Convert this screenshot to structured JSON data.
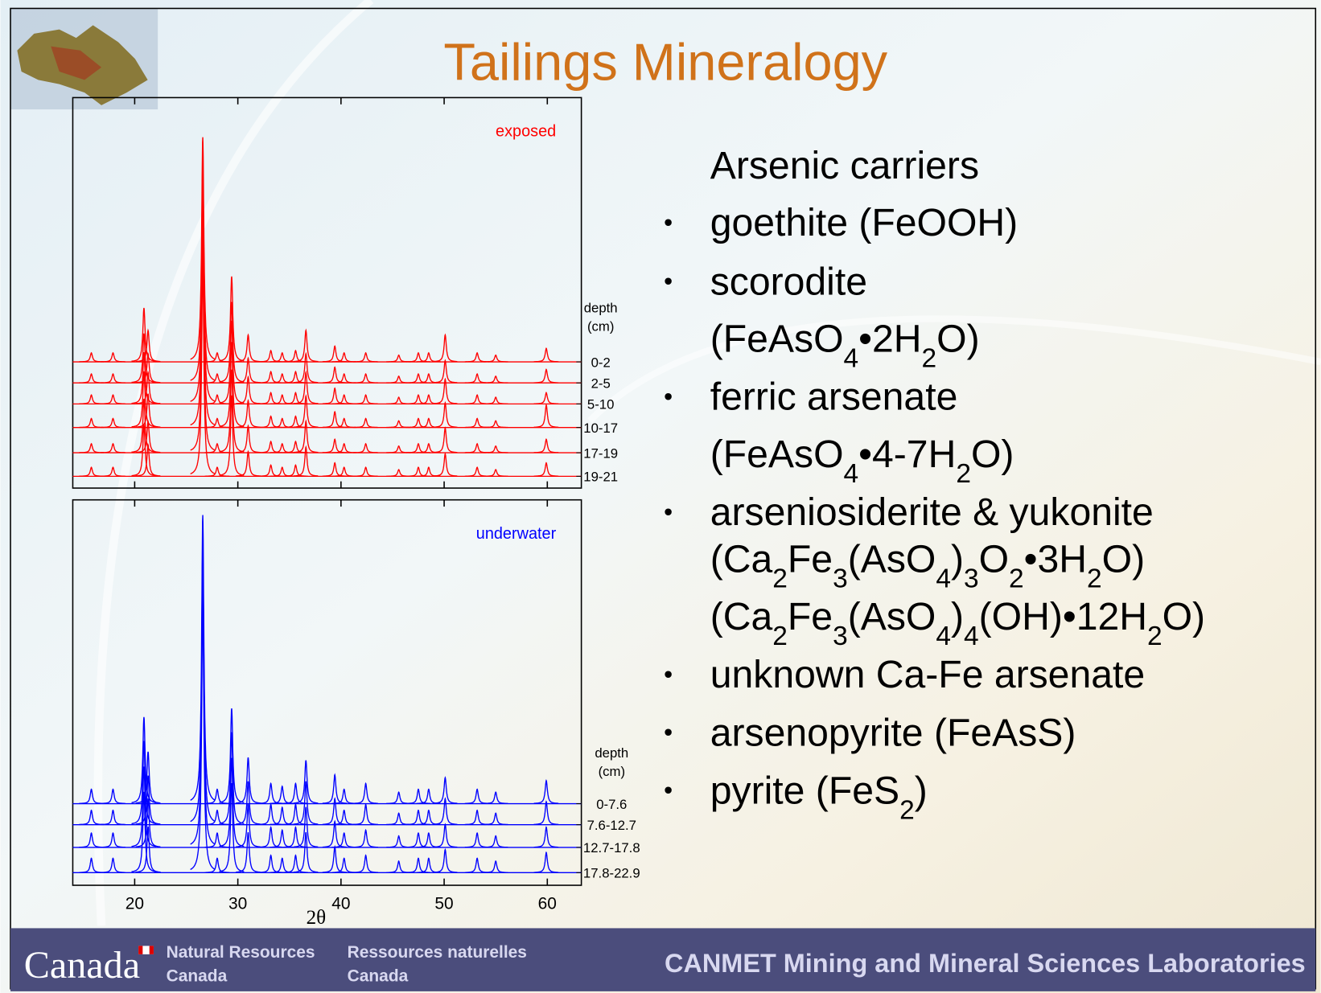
{
  "title": "Tailings Mineralogy",
  "chart_data": [
    {
      "type": "line",
      "annotation": "exposed",
      "legend_title": [
        "depth",
        "(cm)"
      ],
      "xlim": [
        14,
        63.3
      ],
      "xticks": [
        20,
        30,
        40,
        50,
        60
      ],
      "x": [
        15.8,
        17.9,
        20.9,
        21.3,
        26.6,
        28.0,
        29.4,
        31.0,
        33.2,
        34.3,
        35.6,
        36.6,
        39.4,
        40.3,
        42.4,
        45.6,
        47.5,
        48.5,
        50.1,
        53.2,
        55.0,
        59.9
      ],
      "series": [
        {
          "name": "0-2",
          "color": "#ff0000",
          "values": [
            4,
            4,
            24,
            14,
            100,
            4,
            38,
            12,
            5,
            4,
            5,
            14,
            7,
            4,
            4,
            3,
            4,
            4,
            12,
            4,
            3,
            6
          ]
        },
        {
          "name": "2-5",
          "color": "#ff0000",
          "values": [
            4,
            4,
            22,
            13,
            95,
            4,
            36,
            11,
            5,
            4,
            5,
            13,
            7,
            4,
            4,
            3,
            4,
            4,
            10,
            4,
            3,
            6
          ]
        },
        {
          "name": "5-10",
          "color": "#ff0000",
          "values": [
            4,
            4,
            23,
            14,
            97,
            4,
            37,
            12,
            5,
            4,
            5,
            14,
            7,
            4,
            4,
            3,
            4,
            4,
            11,
            4,
            3,
            5
          ]
        },
        {
          "name": "10-17",
          "color": "#ff0000",
          "values": [
            4,
            4,
            25,
            15,
            98,
            4,
            38,
            12,
            5,
            4,
            5,
            14,
            7,
            4,
            4,
            3,
            4,
            4,
            11,
            4,
            3,
            10
          ]
        },
        {
          "name": "17-19",
          "color": "#ff0000",
          "values": [
            4,
            4,
            24,
            14,
            96,
            4,
            37,
            12,
            5,
            4,
            5,
            14,
            6,
            4,
            4,
            3,
            4,
            4,
            11,
            4,
            3,
            6
          ]
        },
        {
          "name": "19-21",
          "color": "#ff0000",
          "values": [
            4,
            4,
            23,
            14,
            94,
            4,
            36,
            11,
            5,
            4,
            5,
            13,
            6,
            4,
            4,
            3,
            4,
            4,
            10,
            4,
            3,
            6
          ]
        }
      ]
    },
    {
      "type": "line",
      "annotation": "underwater",
      "legend_title": [
        "depth",
        "(cm)"
      ],
      "xlabel": "2θ",
      "xlim": [
        14,
        63.3
      ],
      "xticks": [
        20,
        30,
        40,
        50,
        60
      ],
      "x": [
        15.8,
        17.9,
        20.9,
        21.3,
        26.6,
        28.0,
        29.4,
        31.0,
        33.2,
        34.3,
        35.6,
        36.6,
        39.4,
        40.3,
        42.4,
        45.6,
        47.5,
        48.5,
        50.1,
        53.2,
        55.0,
        59.9
      ],
      "series": [
        {
          "name": "0-7.6",
          "color": "#0000ff",
          "values": [
            5,
            5,
            30,
            18,
            100,
            5,
            33,
            16,
            7,
            6,
            7,
            15,
            10,
            5,
            7,
            4,
            5,
            5,
            9,
            5,
            4,
            8
          ]
        },
        {
          "name": "7.6-12.7",
          "color": "#0000ff",
          "values": [
            5,
            5,
            29,
            17,
            96,
            5,
            32,
            15,
            7,
            6,
            7,
            15,
            9,
            5,
            7,
            4,
            5,
            5,
            9,
            5,
            4,
            8
          ]
        },
        {
          "name": "12.7-17.8",
          "color": "#0000ff",
          "values": [
            5,
            5,
            28,
            17,
            95,
            5,
            31,
            15,
            7,
            6,
            7,
            14,
            9,
            5,
            6,
            4,
            5,
            5,
            8,
            5,
            4,
            7
          ]
        },
        {
          "name": "17.8-22.9",
          "color": "#0000ff",
          "values": [
            5,
            5,
            28,
            16,
            94,
            5,
            31,
            14,
            6,
            5,
            6,
            14,
            9,
            5,
            6,
            4,
            5,
            5,
            8,
            5,
            4,
            7
          ]
        }
      ]
    }
  ],
  "text": {
    "intro": "Arsenic carriers",
    "items": [
      [
        [
          "goethite (FeOOH)"
        ]
      ],
      [
        [
          "scorodite"
        ],
        [
          "(FeAsO",
          {
            "sub": "4"
          },
          "•2H",
          {
            "sub": "2"
          },
          "O)"
        ]
      ],
      [
        [
          "ferric arsenate"
        ],
        [
          "(FeAsO",
          {
            "sub": "4"
          },
          "•4-7H",
          {
            "sub": "2"
          },
          "O)"
        ]
      ],
      [
        [
          "arseniosiderite & yukonite"
        ],
        [
          "(Ca",
          {
            "sub": "2"
          },
          "Fe",
          {
            "sub": "3"
          },
          "(AsO",
          {
            "sub": "4"
          },
          ")",
          {
            "sub": "3"
          },
          "O",
          {
            "sub": "2"
          },
          "•3H",
          {
            "sub": "2"
          },
          "O)"
        ],
        [
          "(Ca",
          {
            "sub": "2"
          },
          "Fe",
          {
            "sub": "3"
          },
          "(AsO",
          {
            "sub": "4"
          },
          ")",
          {
            "sub": "4"
          },
          "(OH)•12H",
          {
            "sub": "2"
          },
          "O)"
        ]
      ],
      [
        [
          "unknown Ca-Fe arsenate"
        ]
      ],
      [
        [
          "arsenopyrite (FeAsS)"
        ]
      ],
      [
        [
          "pyrite (FeS",
          {
            "sub": "2"
          },
          ")"
        ]
      ]
    ]
  },
  "footer": {
    "wordmark": "Canada",
    "en": [
      "Natural Resources",
      "Canada"
    ],
    "fr": [
      "Ressources naturelles",
      "Canada"
    ],
    "lab": "CANMET Mining and Mineral Sciences Laboratories"
  }
}
